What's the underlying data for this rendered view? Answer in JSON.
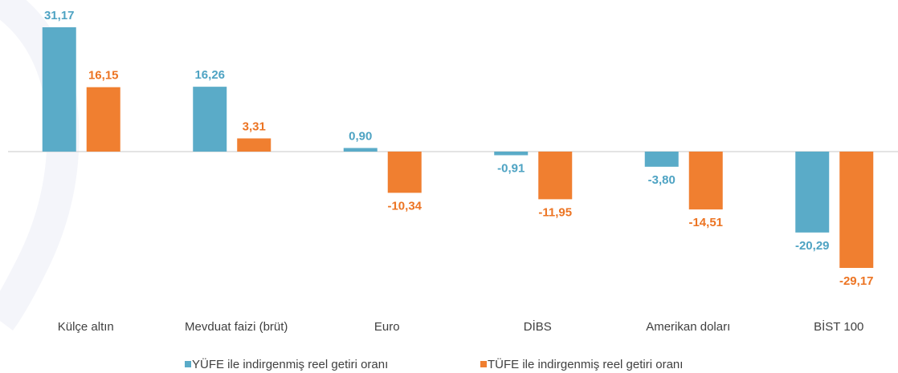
{
  "chart_data": {
    "type": "bar",
    "categories": [
      "Külçe altın",
      "Mevduat faizi (brüt)",
      "Euro",
      "DİBS",
      "Amerikan doları",
      "BİST 100"
    ],
    "series": [
      {
        "name": "YÜFE ile indirgenmiş reel getiri oranı",
        "color": "#5aabc8",
        "label_color": "#4ea3c3",
        "values": [
          31.17,
          16.26,
          0.9,
          -0.91,
          -3.8,
          -20.29
        ],
        "value_labels": [
          "31,17",
          "16,26",
          "0,90",
          "-0,91",
          "-3,80",
          "-20,29"
        ]
      },
      {
        "name": "TÜFE ile indirgenmiş reel getiri oranı",
        "color": "#f07f30",
        "label_color": "#ec7423",
        "values": [
          16.15,
          3.31,
          -10.34,
          -11.95,
          -14.51,
          -29.17
        ],
        "value_labels": [
          "16,15",
          "3,31",
          "-10,34",
          "-11,95",
          "-14,51",
          "-29,17"
        ]
      }
    ]
  }
}
